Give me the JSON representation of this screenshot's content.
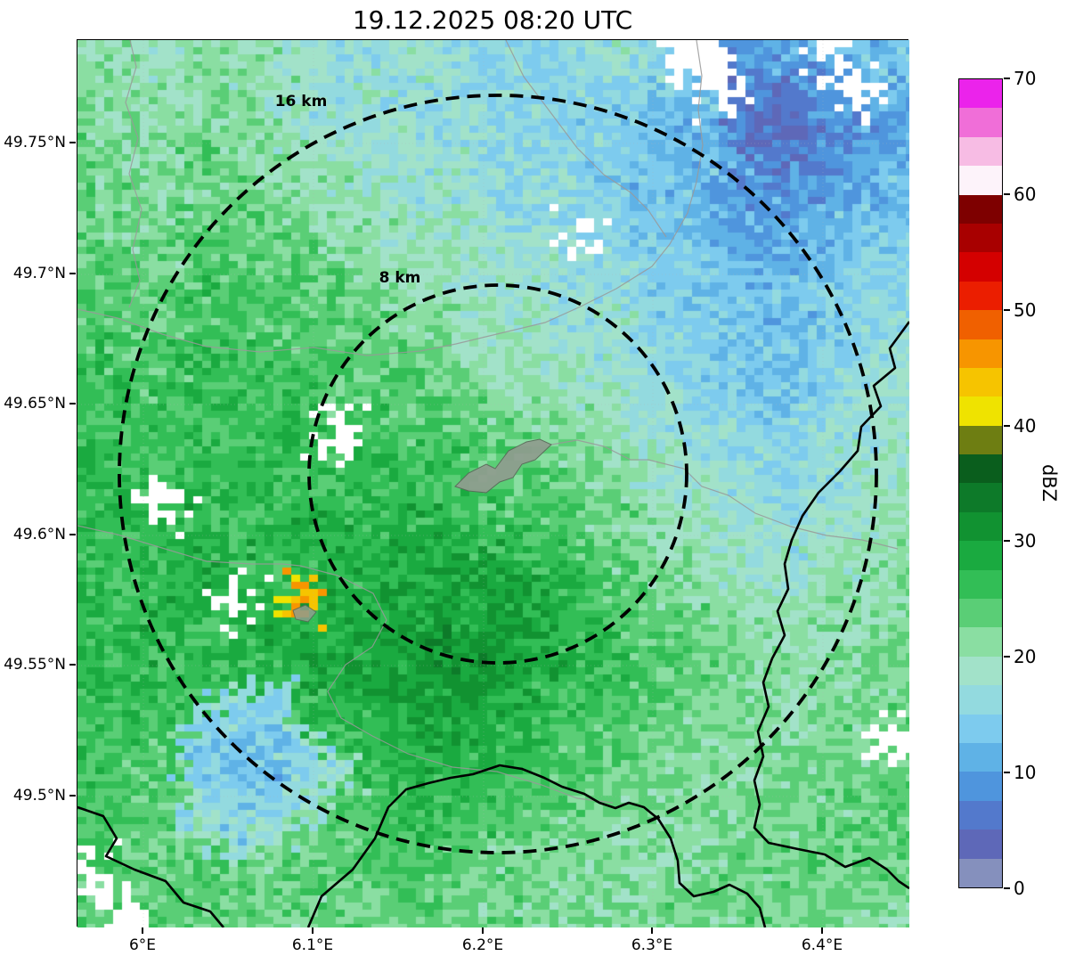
{
  "title": "19.12.2025 08:20 UTC",
  "axes": {
    "x_tick_labels": [
      "6°E",
      "6.1°E",
      "6.2°E",
      "6.3°E",
      "6.4°E"
    ],
    "y_tick_labels": [
      "49.75°N",
      "49.7°N",
      "49.65°N",
      "49.6°N",
      "49.55°N",
      "49.5°N"
    ]
  },
  "range_rings": [
    {
      "label": "8 km"
    },
    {
      "label": "16 km"
    }
  ],
  "map_colors": {
    "country_border": "#000000",
    "admin_border": "#999999",
    "range_ring": "#000000",
    "urban_area": "#8F9E8F",
    "no_data": "#ffffff"
  },
  "colorbar": {
    "label": "dBZ",
    "tick_labels": [
      "0",
      "10",
      "20",
      "30",
      "40",
      "50",
      "60",
      "70"
    ],
    "min_dbz": 0,
    "max_dbz": 70,
    "bin_size_dbz": 2.5,
    "colors_low_to_high": [
      "#8590BD",
      "#5E68B8",
      "#5379CC",
      "#4F95DD",
      "#5FB2E6",
      "#7DCBEE",
      "#93DADF",
      "#A2E2C9",
      "#8ADEA2",
      "#5ACE76",
      "#32BE56",
      "#1AAA40",
      "#119231",
      "#0D7A29",
      "#0A5E1D",
      "#6E7E12",
      "#EFE300",
      "#F6C400",
      "#F79500",
      "#F06000",
      "#EB1E00",
      "#D40000",
      "#A80000",
      "#7E0000",
      "#FDF3FA",
      "#F7BCE4",
      "#F06ED8",
      "#EB23EB"
    ]
  },
  "chart_data": {
    "type": "heatmap",
    "title": "19.12.2025 08:20 UTC",
    "units": "dBZ",
    "legend_position": "right-colorbar",
    "grid": "faint-dotted",
    "x_axis": {
      "label_format": "°E",
      "ticks": [
        6.0,
        6.1,
        6.2,
        6.3,
        6.4
      ],
      "range": [
        5.961,
        6.451
      ]
    },
    "y_axis": {
      "label_format": "°N",
      "ticks": [
        49.75,
        49.7,
        49.65,
        49.6,
        49.55,
        49.5
      ],
      "range": [
        49.449,
        49.789
      ]
    },
    "range_rings_km": [
      8,
      16
    ],
    "no_data_value": -1,
    "grid_rows": 26,
    "grid_cols": 24,
    "values_dbz_rows_north_to_south": [
      [
        20,
        21,
        19,
        22,
        20,
        21,
        18,
        17,
        16,
        18,
        17,
        15,
        16,
        15,
        17,
        18,
        16,
        -1,
        -1,
        9,
        11,
        -1,
        12,
        14
      ],
      [
        22,
        20,
        21,
        20,
        22,
        19,
        18,
        17,
        18,
        16,
        17,
        15,
        16,
        15,
        16,
        15,
        14,
        13,
        -1,
        7,
        6,
        9,
        -1,
        11
      ],
      [
        21,
        22,
        20,
        23,
        21,
        22,
        19,
        18,
        17,
        18,
        16,
        17,
        15,
        16,
        14,
        15,
        13,
        12,
        10,
        6,
        5,
        7,
        9,
        10
      ],
      [
        23,
        21,
        22,
        24,
        22,
        20,
        21,
        19,
        18,
        17,
        18,
        16,
        17,
        15,
        16,
        14,
        13,
        12,
        11,
        8,
        6,
        8,
        10,
        12
      ],
      [
        22,
        23,
        21,
        22,
        24,
        22,
        20,
        21,
        19,
        18,
        17,
        18,
        16,
        17,
        15,
        14,
        12,
        13,
        11,
        9,
        8,
        10,
        11,
        13
      ],
      [
        24,
        22,
        23,
        25,
        23,
        24,
        22,
        20,
        21,
        19,
        19,
        18,
        17,
        16,
        -1,
        15,
        14,
        13,
        12,
        11,
        10,
        12,
        13,
        14
      ],
      [
        23,
        24,
        22,
        24,
        25,
        23,
        24,
        22,
        21,
        20,
        19,
        18,
        17,
        18,
        16,
        17,
        15,
        14,
        13,
        12,
        11,
        13,
        14,
        15
      ],
      [
        25,
        23,
        24,
        26,
        24,
        25,
        23,
        24,
        22,
        21,
        20,
        19,
        18,
        17,
        18,
        16,
        15,
        14,
        13,
        12,
        13,
        14,
        15,
        16
      ],
      [
        24,
        25,
        23,
        25,
        26,
        24,
        25,
        23,
        24,
        22,
        21,
        20,
        19,
        18,
        17,
        18,
        16,
        15,
        14,
        13,
        12,
        14,
        15,
        17
      ],
      [
        26,
        24,
        25,
        27,
        25,
        26,
        24,
        25,
        23,
        24,
        22,
        21,
        20,
        19,
        18,
        17,
        16,
        15,
        14,
        13,
        14,
        15,
        16,
        18
      ],
      [
        25,
        26,
        24,
        26,
        27,
        25,
        26,
        24,
        25,
        23,
        24,
        22,
        21,
        20,
        19,
        18,
        17,
        16,
        15,
        14,
        13,
        15,
        17,
        18
      ],
      [
        26,
        25,
        27,
        25,
        26,
        26,
        27,
        -1,
        26,
        24,
        25,
        23,
        24,
        22,
        21,
        20,
        18,
        17,
        16,
        15,
        14,
        16,
        17,
        19
      ],
      [
        27,
        26,
        25,
        27,
        26,
        27,
        25,
        26,
        27,
        25,
        26,
        24,
        25,
        23,
        22,
        21,
        19,
        18,
        17,
        16,
        15,
        17,
        18,
        19
      ],
      [
        26,
        27,
        -1,
        26,
        27,
        26,
        27,
        27,
        26,
        27,
        25,
        26,
        24,
        25,
        23,
        22,
        20,
        19,
        18,
        17,
        16,
        17,
        18,
        20
      ],
      [
        27,
        26,
        27,
        28,
        26,
        28,
        27,
        28,
        27,
        28,
        29,
        27,
        26,
        25,
        24,
        23,
        21,
        20,
        19,
        18,
        17,
        18,
        19,
        20
      ],
      [
        26,
        27,
        26,
        28,
        27,
        26,
        27,
        27,
        28,
        29,
        28,
        30,
        28,
        27,
        26,
        24,
        22,
        21,
        20,
        19,
        18,
        19,
        20,
        21
      ],
      [
        27,
        26,
        28,
        27,
        -1,
        27,
        44,
        29,
        28,
        30,
        29,
        28,
        30,
        28,
        27,
        25,
        23,
        22,
        21,
        20,
        19,
        20,
        21,
        21
      ],
      [
        26,
        28,
        27,
        26,
        27,
        28,
        29,
        28,
        30,
        29,
        31,
        30,
        29,
        28,
        27,
        26,
        24,
        23,
        22,
        21,
        20,
        21,
        21,
        22
      ],
      [
        27,
        26,
        25,
        27,
        26,
        27,
        28,
        29,
        28,
        30,
        29,
        31,
        30,
        29,
        27,
        26,
        25,
        24,
        23,
        22,
        21,
        21,
        22,
        22
      ],
      [
        26,
        25,
        26,
        24,
        16,
        15,
        26,
        27,
        28,
        29,
        30,
        29,
        28,
        27,
        26,
        25,
        24,
        23,
        22,
        21,
        20,
        22,
        21,
        23
      ],
      [
        25,
        26,
        24,
        15,
        14,
        13,
        16,
        25,
        27,
        28,
        29,
        28,
        27,
        26,
        25,
        24,
        23,
        22,
        21,
        22,
        21,
        22,
        23,
        -1
      ],
      [
        26,
        24,
        25,
        14,
        13,
        12,
        15,
        17,
        26,
        27,
        28,
        27,
        26,
        25,
        24,
        23,
        22,
        21,
        22,
        21,
        22,
        23,
        22,
        23
      ],
      [
        24,
        25,
        23,
        16,
        14,
        15,
        17,
        24,
        25,
        26,
        27,
        26,
        25,
        24,
        23,
        22,
        21,
        22,
        21,
        22,
        23,
        22,
        23,
        24
      ],
      [
        25,
        23,
        24,
        22,
        17,
        18,
        23,
        24,
        25,
        26,
        25,
        24,
        23,
        22,
        22,
        21,
        22,
        21,
        22,
        23,
        22,
        23,
        24,
        23
      ],
      [
        -1,
        24,
        23,
        25,
        23,
        22,
        24,
        23,
        24,
        25,
        24,
        23,
        22,
        23,
        21,
        22,
        21,
        22,
        23,
        22,
        23,
        24,
        23,
        22
      ],
      [
        23,
        -1,
        24,
        23,
        24,
        23,
        22,
        24,
        23,
        24,
        23,
        22,
        23,
        21,
        22,
        21,
        22,
        23,
        22,
        23,
        22,
        23,
        22,
        21
      ]
    ]
  }
}
